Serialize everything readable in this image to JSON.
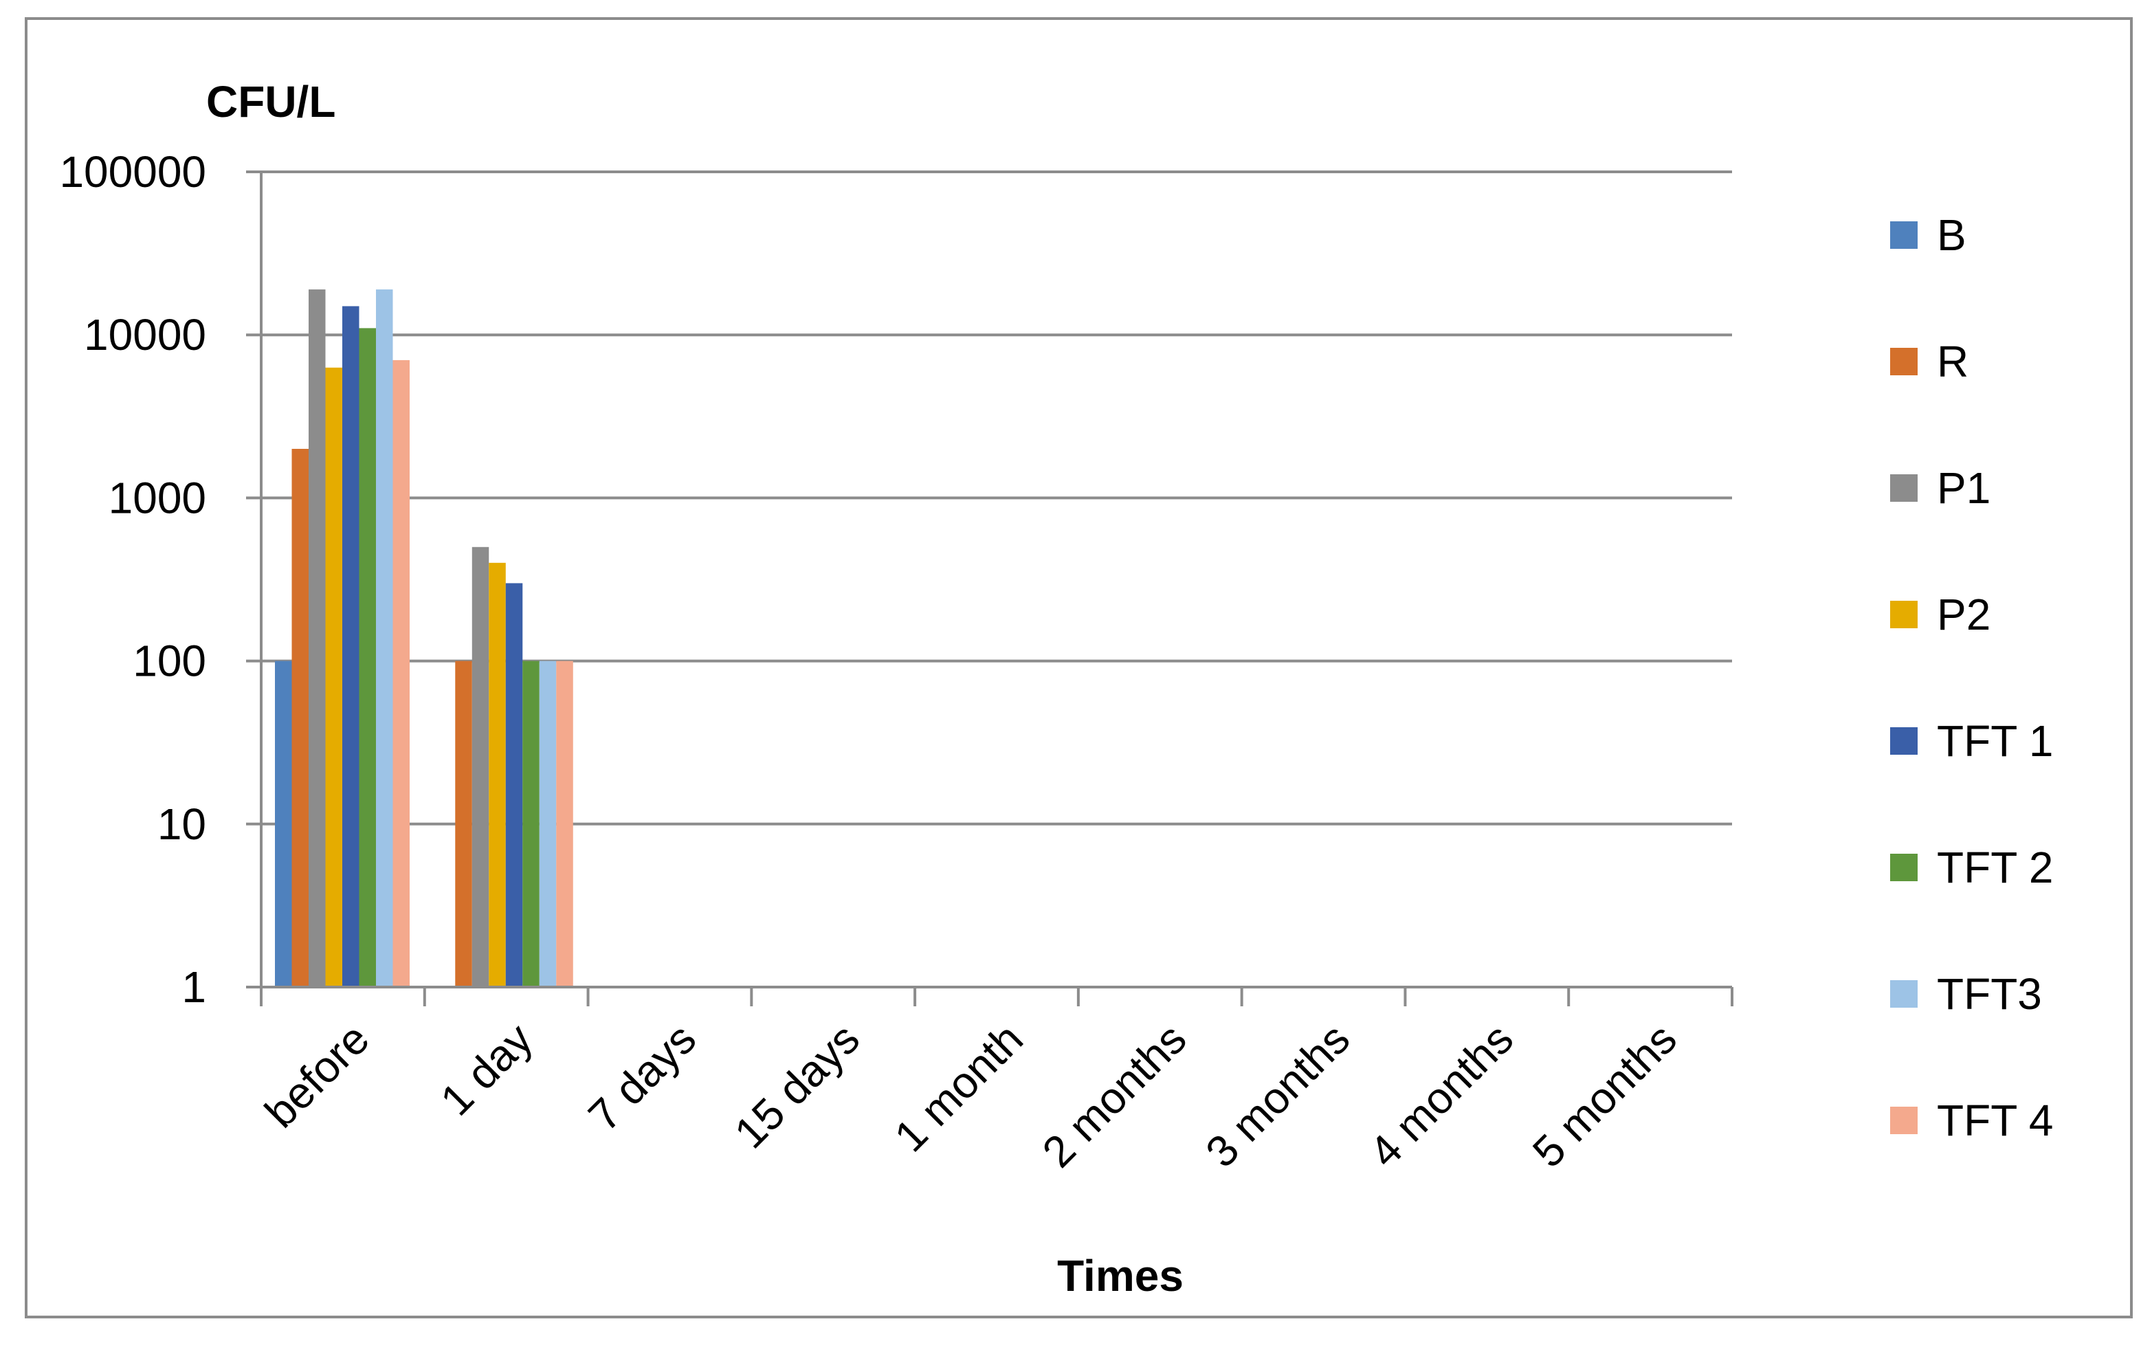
{
  "chart_data": {
    "type": "bar",
    "title": "",
    "xlabel": "Times",
    "ylabel": "CFU/L",
    "yscale": "log",
    "ylim": [
      1,
      100000
    ],
    "yticks": [
      "1",
      "10",
      "100",
      "1000",
      "10000",
      "100000"
    ],
    "grid": true,
    "legend_position": "right",
    "categories": [
      "before",
      "1 day",
      "7 days",
      "15 days",
      "1 month",
      "2 months",
      "3 months",
      "4 months",
      "5 months"
    ],
    "series": [
      {
        "name": "B",
        "color": "#4F81BD",
        "values": [
          100,
          1,
          1,
          1,
          1,
          1,
          1,
          1,
          1
        ]
      },
      {
        "name": "R",
        "color": "#D4702B",
        "values": [
          2000,
          100,
          1,
          1,
          1,
          1,
          1,
          1,
          1
        ]
      },
      {
        "name": "P1",
        "color": "#8C8C8C",
        "values": [
          19000,
          500,
          1,
          1,
          1,
          1,
          1,
          1,
          1
        ]
      },
      {
        "name": "P2",
        "color": "#E5AC00",
        "values": [
          6300,
          400,
          1,
          1,
          1,
          1,
          1,
          1,
          1
        ]
      },
      {
        "name": "TFT 1",
        "color": "#3A5FA8",
        "values": [
          15000,
          300,
          1,
          1,
          1,
          1,
          1,
          1,
          1
        ]
      },
      {
        "name": "TFT 2",
        "color": "#5E973C",
        "values": [
          11000,
          100,
          1,
          1,
          1,
          1,
          1,
          1,
          1
        ]
      },
      {
        "name": "TFT3",
        "color": "#9DC3E6",
        "values": [
          19000,
          100,
          1,
          1,
          1,
          1,
          1,
          1,
          1
        ]
      },
      {
        "name": "TFT 4",
        "color": "#F4A98D",
        "values": [
          7000,
          100,
          1,
          1,
          1,
          1,
          1,
          1,
          1
        ]
      }
    ]
  }
}
